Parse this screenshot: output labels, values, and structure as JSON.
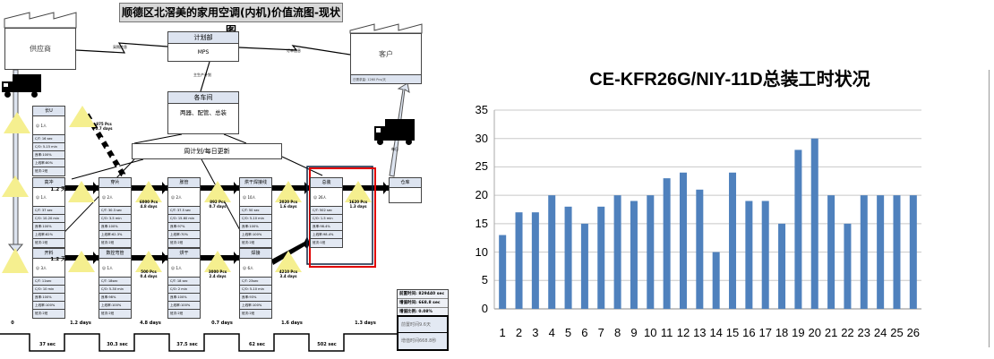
{
  "vsm": {
    "title": "顺德区北滘美的家用空调(内机)价值流图-现状图",
    "supplier": "供应商",
    "customer": "客户",
    "customer_demand": "日需求量: 1260 Pcs/天",
    "planning": {
      "header": "计划部",
      "body": "MPS"
    },
    "workshops": {
      "header": "各车间",
      "body": "两器、配管、总装"
    },
    "schedule": "周计划/每日更新",
    "purchase_info": "采购信息",
    "order_info": "订单信息",
    "master_plan": "主生产计划",
    "daily": "每日",
    "processes": [
      {
        "name": "长U",
        "ops": "1人",
        "ct": "C/T: 16 sec",
        "co": "C/O: 5-15 min",
        "yield": "良率:100%",
        "uptime": "上线率:80%",
        "shift": "班次:2班"
      },
      {
        "name": "高冲",
        "ops": "1人",
        "ct": "C/T: 37 sec",
        "co": "C/O: 10-20 min",
        "yield": "良率:100%",
        "uptime": "上线率:82%",
        "shift": "班次:2班"
      },
      {
        "name": "穿片",
        "ops": "2人",
        "ct": "C/T: 30.3 sec",
        "co": "C/O: 3-5 min",
        "yield": "良率:100%",
        "uptime": "上线率:62.3%",
        "shift": "班次:2班"
      },
      {
        "name": "胀管",
        "ops": "2人",
        "ct": "C/T: 37.5 sec",
        "co": "C/O: 15-60 min",
        "yield": "良率:97%",
        "uptime": "上线率:70%",
        "shift": "班次:2班"
      },
      {
        "name": "烘干焊接线",
        "ops": "10人",
        "ct": "C/T: 50 sec",
        "co": "C/O: 5-10 min",
        "yield": "良率:100%",
        "uptime": "上线率:100%",
        "shift": "班次:2班"
      },
      {
        "name": "总装",
        "ops": "26人",
        "ct": "C/T: 502 sec",
        "co": "C/O: 1-5 min",
        "yield": "良率:98.4%",
        "uptime": "上线率:98.4%",
        "shift": "班次:1班"
      },
      {
        "name": "开料",
        "ops": "3人",
        "ct": "C/T: 11sec",
        "co": "C/O: 10 min",
        "yield": "良率:100%",
        "uptime": "上线率:100%",
        "shift": "班次:2班"
      },
      {
        "name": "数控弯管",
        "ops": "1人",
        "ct": "C/T: 18sec",
        "co": "C/O: 5-30 min",
        "yield": "良率:98%",
        "uptime": "上线率:100%",
        "shift": "班次:2班"
      },
      {
        "name": "烘干",
        "ops": "1人",
        "ct": "C/T: 18 sec",
        "co": "C/O: 2 min",
        "yield": "良率:100%",
        "uptime": "上线率:100%",
        "shift": "班次:2班"
      },
      {
        "name": "焊接",
        "ops": "6人",
        "ct": "C/T: 23sec",
        "co": "C/O: 5-10 min",
        "yield": "良率:93%",
        "uptime": "上线率:100%",
        "shift": "班次:2班"
      }
    ],
    "warehouse": "仓库",
    "inventory": [
      {
        "qty": "875 Pcs",
        "days": "0.7 days"
      },
      {
        "qty": "1.2 天",
        "days": ""
      },
      {
        "qty": "6000 Pcs",
        "days": "4.8 days"
      },
      {
        "qty": "892 Pcs",
        "days": "0.7 days"
      },
      {
        "qty": "2020 Pcs",
        "days": "1.6 days"
      },
      {
        "qty": "1620 Pcs",
        "days": "1.3 days"
      },
      {
        "qty": "1.2 天",
        "days": ""
      },
      {
        "qty": "500 Pcs",
        "days": "0.4 days"
      },
      {
        "qty": "3000 Pcs",
        "days": "2.4 days"
      },
      {
        "qty": "4210 Pcs",
        "days": "3.4 days"
      }
    ],
    "timeline_days": [
      "0",
      "1.2 days",
      "4.8 days",
      "0.7 days",
      "1.6 days",
      "1.3 days"
    ],
    "timeline_secs": [
      "37 sec",
      "30.3 sec",
      "37.5 sec",
      "62 sec",
      "502 sec"
    ],
    "summary": {
      "lead_time": "前置时间: 829440 sec",
      "value_added": "增值时间: 668.8 sec",
      "ratio": "增值比例: 0.08%",
      "lead_days": "前置时间9.6天",
      "va_secs": "增值时间668.8秒"
    },
    "highlight_color": "#e00000"
  },
  "chart_data": {
    "type": "bar",
    "title": "CE-KFR26G/NIY-11D总装工时状况",
    "categories": [
      "1",
      "2",
      "3",
      "4",
      "5",
      "6",
      "7",
      "8",
      "9",
      "10",
      "11",
      "12",
      "13",
      "14",
      "15",
      "16",
      "17",
      "18",
      "19",
      "20",
      "21",
      "22",
      "23",
      "24",
      "25",
      "26"
    ],
    "values": [
      13,
      17,
      17,
      20,
      18,
      15,
      18,
      20,
      19,
      20,
      23,
      24,
      21,
      10,
      24,
      19,
      19,
      15,
      28,
      30,
      20,
      15,
      20,
      20,
      20,
      20
    ],
    "yticks": [
      "0",
      "5",
      "10",
      "15",
      "20",
      "25",
      "30",
      "35"
    ],
    "ylim": [
      0,
      35
    ],
    "grid": true,
    "bar_color": "#4f81bd",
    "xlabel": "",
    "ylabel": ""
  }
}
